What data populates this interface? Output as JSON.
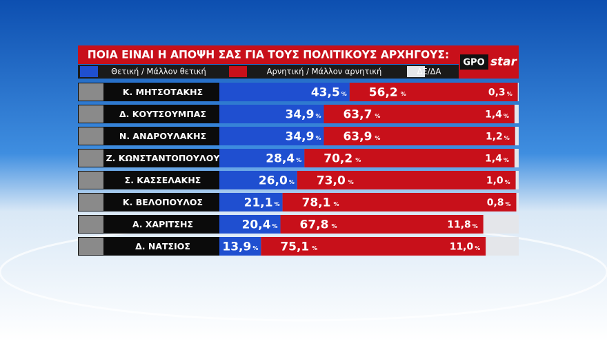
{
  "chart_data": {
    "type": "bar",
    "orientation": "horizontal",
    "stacked": true,
    "title": "ΠΟΙΑ ΕΙΝΑΙ Η ΑΠΟΨΗ ΣΑΣ ΓΙΑ ΤΟΥΣ ΠΟΛΙΤΙΚΟΥΣ ΑΡΧΗΓΟΥΣ:",
    "unit": "%",
    "xlim": [
      0,
      100
    ],
    "categories": [
      "Κ. ΜΗΤΣΟΤΑΚΗΣ",
      "Δ. ΚΟΥΤΣΟΥΜΠΑΣ",
      "Ν. ΑΝΔΡΟΥΛΑΚΗΣ",
      "Ζ. ΚΩΝΣΤΑΝΤΟΠΟΥΛΟΥ",
      "Σ. ΚΑΣΣΕΛΑΚΗΣ",
      "Κ. ΒΕΛΟΠΟΥΛΟΣ",
      "Α. ΧΑΡΙΤΣΗΣ",
      "Δ. ΝΑΤΣΙΟΣ"
    ],
    "series": [
      {
        "name": "Θετική / Μάλλον θετική",
        "color": "#1f4fd0",
        "values": [
          43.5,
          34.9,
          34.9,
          28.4,
          26.0,
          21.1,
          20.4,
          13.9
        ],
        "value_labels": [
          "43,5",
          "34,9",
          "34,9",
          "28,4",
          "26,0",
          "21,1",
          "20,4",
          "13,9"
        ]
      },
      {
        "name": "Αρνητική / Μάλλον αρνητική",
        "color": "#c8101a",
        "values": [
          56.2,
          63.7,
          63.9,
          70.2,
          73.0,
          78.1,
          67.8,
          75.1
        ],
        "value_labels": [
          "56,2",
          "63,7",
          "63,9",
          "70,2",
          "73,0",
          "78,1",
          "67,8",
          "75,1"
        ]
      },
      {
        "name": "ΔΞ/ΔΑ",
        "color": "#e4e6ea",
        "values": [
          0.3,
          1.4,
          1.2,
          1.4,
          1.0,
          0.8,
          11.8,
          11.0
        ],
        "value_labels": [
          "0,3",
          "1,4",
          "1,2",
          "1,4",
          "1,0",
          "0,8",
          "11,8",
          "11,0"
        ]
      }
    ]
  },
  "logo": {
    "left": "GPO",
    "right": "star"
  }
}
